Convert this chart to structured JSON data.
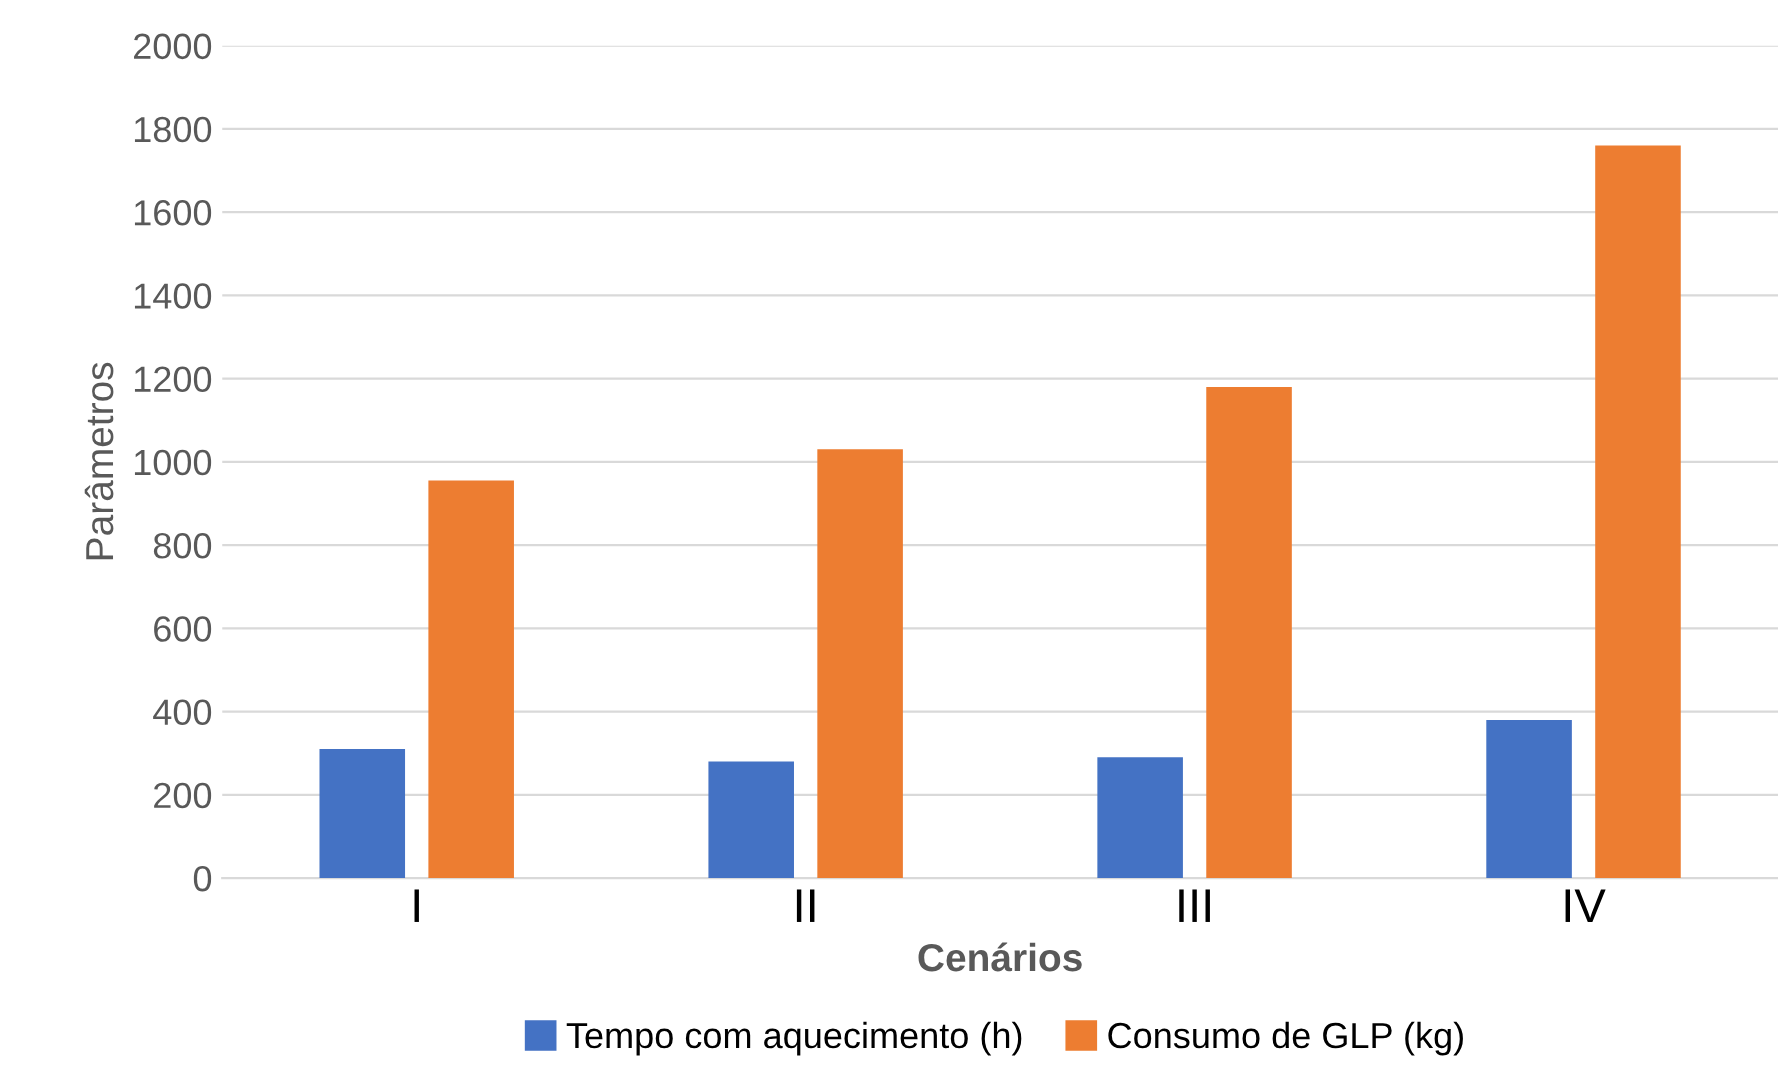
{
  "chart_data": {
    "type": "bar",
    "xlabel": "Cenários",
    "ylabel": "Parâmetros",
    "categories": [
      "I",
      "II",
      "III",
      "IV"
    ],
    "series": [
      {
        "name": "Tempo com aquecimento (h)",
        "color": "#4472c4",
        "values": [
          310,
          280,
          290,
          380
        ]
      },
      {
        "name": "Consumo de GLP (kg)",
        "color": "#ed7d31",
        "values": [
          955,
          1030,
          1180,
          1760
        ]
      }
    ],
    "ylim": [
      0,
      2000
    ],
    "yticks": [
      0,
      200,
      400,
      600,
      800,
      1000,
      1200,
      1400,
      1600,
      1800,
      2000
    ],
    "grid": "y",
    "legend": "bottom"
  }
}
